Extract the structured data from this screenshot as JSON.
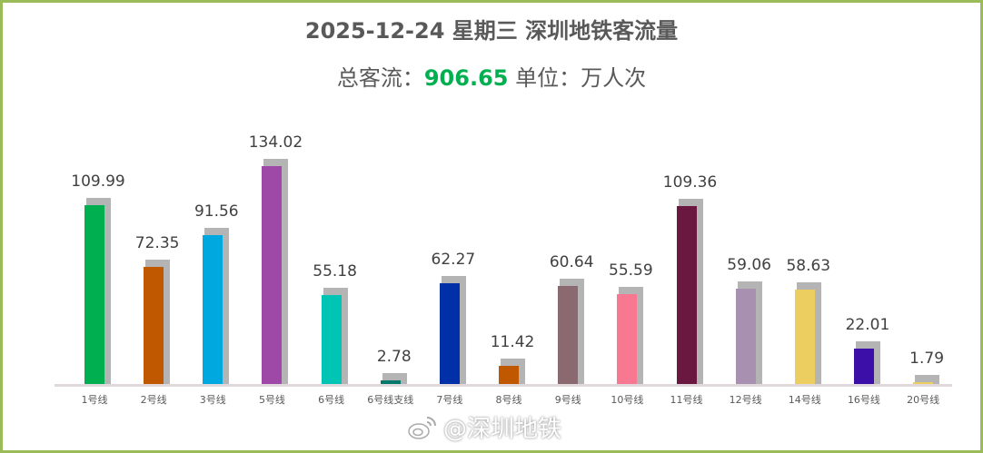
{
  "title": "2025-12-24 星期三 深圳地铁客流量",
  "subtitle": {
    "prefix": "总客流：",
    "total": "906.65",
    "unit": " 单位：万人次"
  },
  "watermark": "@深圳地铁",
  "colors": {
    "frame": "#9bbb59",
    "total": "#00b050",
    "shadow": "#b4b4b4",
    "axis": "#e0d8dc"
  },
  "chart_data": {
    "type": "bar",
    "title": "2025-12-24 星期三 深圳地铁客流量",
    "subtitle": "总客流：906.65 单位：万人次",
    "xlabel": "",
    "ylabel": "",
    "ylim": [
      0,
      140
    ],
    "grid": false,
    "legend": "none",
    "categories": [
      "1号线",
      "2号线",
      "3号线",
      "5号线",
      "6号线",
      "6号线支线",
      "7号线",
      "8号线",
      "9号线",
      "10号线",
      "11号线",
      "12号线",
      "14号线",
      "16号线",
      "20号线"
    ],
    "values": [
      109.99,
      72.35,
      91.56,
      134.02,
      55.18,
      2.78,
      62.27,
      11.42,
      60.64,
      55.59,
      109.36,
      59.06,
      58.63,
      22.01,
      1.79
    ],
    "value_labels": [
      "109.99",
      "72.35",
      "91.56",
      "134.02",
      "55.18",
      "2.78",
      "62.27",
      "11.42",
      "60.64",
      "55.59",
      "109.36",
      "59.06",
      "58.63",
      "22.01",
      "1.79"
    ],
    "bar_colors": [
      "#00b050",
      "#c05800",
      "#00a8e0",
      "#9e48a8",
      "#00c4b4",
      "#00786c",
      "#0030a8",
      "#c05800",
      "#8a6a70",
      "#f77890",
      "#6a1840",
      "#a890b0",
      "#ecce60",
      "#3c10a8",
      "#ecce60"
    ],
    "total": 906.65,
    "unit": "万人次"
  }
}
